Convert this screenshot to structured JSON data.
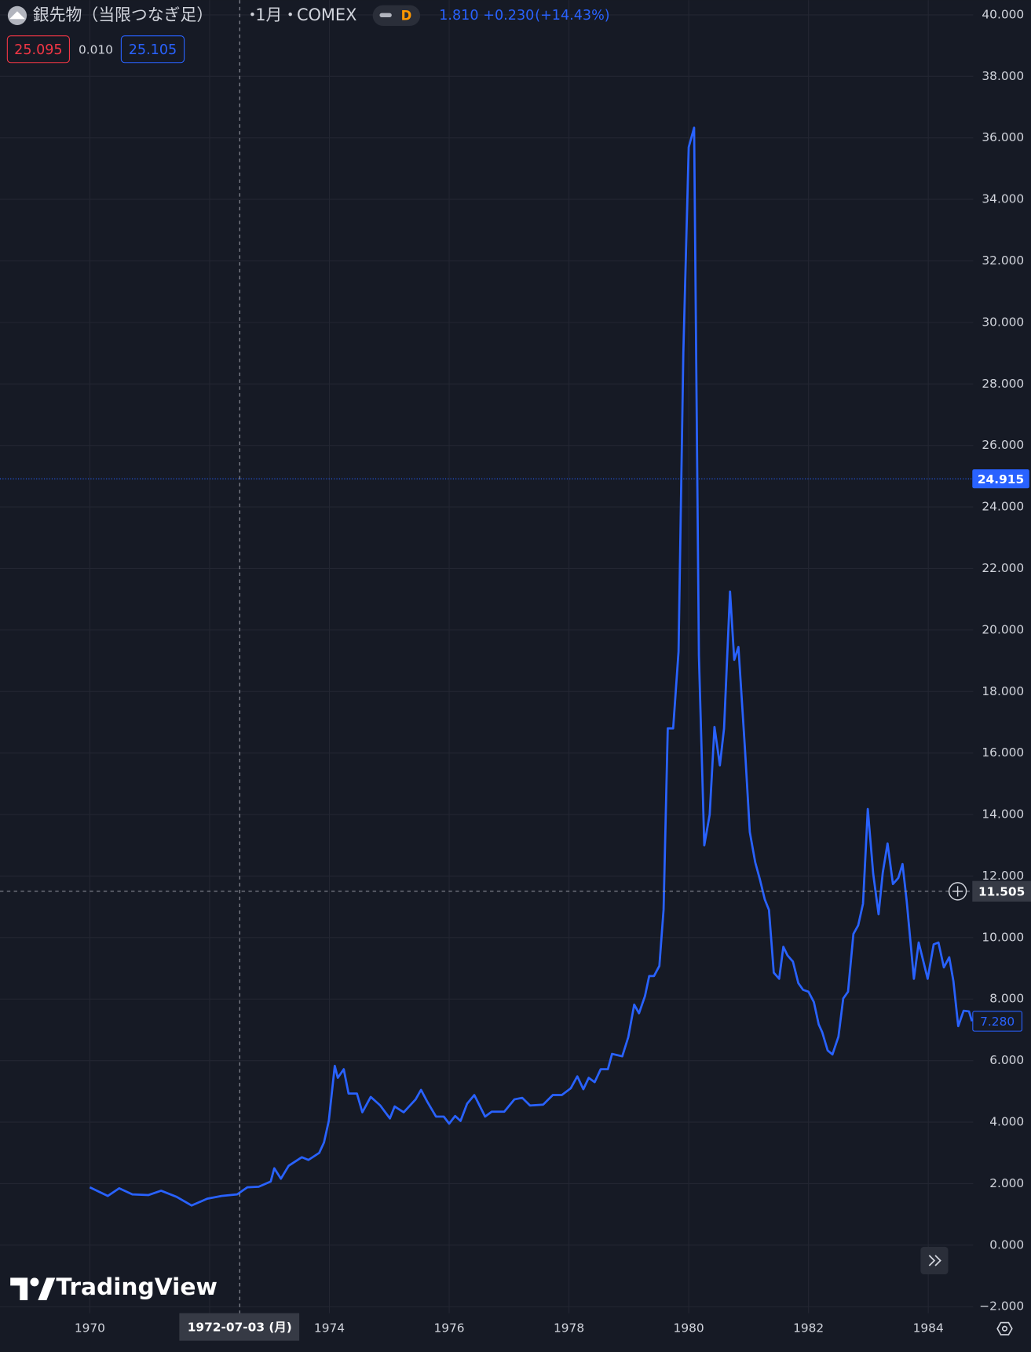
{
  "header": {
    "title": "銀先物（当限つなぎ足）",
    "interval": "1月",
    "exchange": "COMEX",
    "resolution_badge": "D",
    "last": "1.810",
    "change": "+0.230",
    "change_pct": "(+14.43%)",
    "bid": "25.095",
    "spread": "0.010",
    "ask": "25.105",
    "brand": "TradingView"
  },
  "chart_data": {
    "type": "line",
    "color": "#2962ff",
    "grid": true,
    "x": [
      1970.0,
      1970.3,
      1970.49,
      1970.71,
      1970.98,
      1971.19,
      1971.45,
      1971.7,
      1971.96,
      1972.2,
      1972.46,
      1972.63,
      1972.82,
      1973.02,
      1973.08,
      1973.19,
      1973.32,
      1973.54,
      1973.65,
      1973.83,
      1973.91,
      1973.99,
      1974.09,
      1974.14,
      1974.24,
      1974.32,
      1974.46,
      1974.55,
      1974.69,
      1974.85,
      1975.01,
      1975.09,
      1975.24,
      1975.44,
      1975.53,
      1975.63,
      1975.78,
      1975.91,
      1976.0,
      1976.1,
      1976.19,
      1976.3,
      1976.42,
      1976.6,
      1976.71,
      1976.92,
      1977.09,
      1977.22,
      1977.35,
      1977.57,
      1977.73,
      1977.88,
      1978.03,
      1978.14,
      1978.24,
      1978.33,
      1978.43,
      1978.53,
      1978.65,
      1978.72,
      1978.89,
      1978.99,
      1979.09,
      1979.17,
      1979.27,
      1979.34,
      1979.42,
      1979.51,
      1979.58,
      1979.65,
      1979.74,
      1979.83,
      1979.91,
      1980.0,
      1980.09,
      1980.17,
      1980.26,
      1980.35,
      1980.43,
      1980.52,
      1980.59,
      1980.69,
      1980.76,
      1980.83,
      1980.94,
      1981.02,
      1981.11,
      1981.19,
      1981.27,
      1981.34,
      1981.42,
      1981.51,
      1981.58,
      1981.65,
      1981.74,
      1981.83,
      1981.91,
      1982.0,
      1982.09,
      1982.17,
      1982.23,
      1982.32,
      1982.4,
      1982.5,
      1982.58,
      1982.66,
      1982.75,
      1982.83,
      1982.91,
      1982.99,
      1983.08,
      1983.17,
      1983.24,
      1983.32,
      1983.41,
      1983.5,
      1983.57,
      1983.64,
      1983.76,
      1983.84,
      1983.99,
      1984.09,
      1984.17,
      1984.26,
      1984.35,
      1984.42,
      1984.5,
      1984.59,
      1984.68,
      1984.73
    ],
    "values": [
      1.88,
      1.6,
      1.85,
      1.65,
      1.63,
      1.77,
      1.57,
      1.29,
      1.51,
      1.6,
      1.65,
      1.88,
      1.9,
      2.07,
      2.5,
      2.16,
      2.58,
      2.86,
      2.77,
      3.0,
      3.34,
      4.04,
      5.83,
      5.44,
      5.72,
      4.93,
      4.93,
      4.32,
      4.82,
      4.54,
      4.12,
      4.51,
      4.32,
      4.74,
      5.05,
      4.68,
      4.18,
      4.18,
      3.95,
      4.2,
      4.04,
      4.6,
      4.88,
      4.18,
      4.34,
      4.34,
      4.74,
      4.79,
      4.54,
      4.57,
      4.88,
      4.88,
      5.1,
      5.49,
      5.07,
      5.44,
      5.3,
      5.72,
      5.72,
      6.22,
      6.14,
      6.76,
      7.82,
      7.54,
      8.1,
      8.75,
      8.75,
      9.08,
      10.9,
      16.8,
      16.8,
      19.3,
      29.0,
      35.7,
      36.33,
      19.17,
      13.0,
      14.0,
      16.85,
      15.6,
      16.8,
      21.25,
      19.03,
      19.45,
      16.1,
      13.43,
      12.45,
      11.88,
      11.24,
      10.9,
      8.86,
      8.66,
      9.7,
      9.42,
      9.22,
      8.52,
      8.3,
      8.24,
      7.9,
      7.18,
      6.92,
      6.33,
      6.2,
      6.78,
      8.02,
      8.24,
      10.12,
      10.4,
      11.1,
      14.18,
      12.08,
      10.76,
      12.11,
      13.06,
      11.74,
      11.94,
      12.39,
      11.18,
      8.66,
      9.84,
      8.66,
      9.78,
      9.84,
      9.03,
      9.36,
      8.58,
      7.12,
      7.62,
      7.6,
      7.28
    ],
    "xlim": [
      1968.5,
      1984.75
    ],
    "xticks": [
      1970,
      1972,
      1974,
      1976,
      1978,
      1980,
      1982,
      1984
    ],
    "ylim": [
      -2.21,
      40.48
    ],
    "yticks": [
      {
        "value": -2,
        "label": "−2.000"
      },
      {
        "value": 0,
        "label": "0.000"
      },
      {
        "value": 2,
        "label": "2.000"
      },
      {
        "value": 4,
        "label": "4.000"
      },
      {
        "value": 6,
        "label": "6.000"
      },
      {
        "value": 8,
        "label": "8.000"
      },
      {
        "value": 10,
        "label": "10.000"
      },
      {
        "value": 12,
        "label": "12.000"
      },
      {
        "value": 14,
        "label": "14.000"
      },
      {
        "value": 16,
        "label": "16.000"
      },
      {
        "value": 18,
        "label": "18.000"
      },
      {
        "value": 20,
        "label": "20.000"
      },
      {
        "value": 22,
        "label": "22.000"
      },
      {
        "value": 24,
        "label": "24.000"
      },
      {
        "value": 26,
        "label": "26.000"
      },
      {
        "value": 28,
        "label": "28.000"
      },
      {
        "value": 30,
        "label": "30.000"
      },
      {
        "value": 32,
        "label": "32.000"
      },
      {
        "value": 34,
        "label": "34.000"
      },
      {
        "value": 36,
        "label": "36.000"
      },
      {
        "value": 38,
        "label": "38.000"
      },
      {
        "value": 40,
        "label": "40.000"
      }
    ],
    "price_line": {
      "value": 24.915,
      "label": "24.915"
    },
    "last_value": {
      "value": 7.28,
      "label": "7.280"
    },
    "crosshair": {
      "value": 11.505,
      "label": "11.505",
      "date": "1972-07-03 (月)"
    }
  }
}
